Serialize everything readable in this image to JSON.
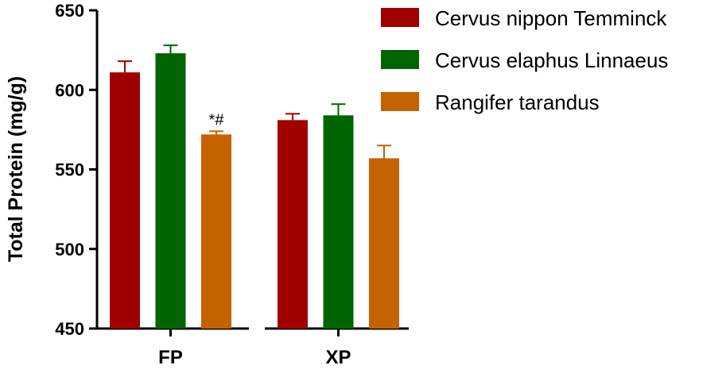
{
  "chart_data": {
    "type": "bar",
    "categories": [
      "FP",
      "XP"
    ],
    "ylabel": "Total Protein (mg/g)",
    "ylim": [
      450,
      650
    ],
    "yticks": [
      450,
      500,
      550,
      600,
      650
    ],
    "series": [
      {
        "name": "Cervus nippon Temminck",
        "color": "#a00000",
        "values": [
          611,
          581
        ],
        "errors": [
          7,
          4
        ]
      },
      {
        "name": "Cervus elaphus Linnaeus",
        "color": "#006400",
        "values": [
          623,
          584
        ],
        "errors": [
          5,
          7
        ]
      },
      {
        "name": "Rangifer tarandus",
        "color": "#c46200",
        "values": [
          572,
          557
        ],
        "errors": [
          2,
          8
        ]
      }
    ],
    "annotations": [
      {
        "category": "FP",
        "series": 2,
        "text": "*#"
      }
    ],
    "legend_position": "top-right",
    "grid": false
  }
}
